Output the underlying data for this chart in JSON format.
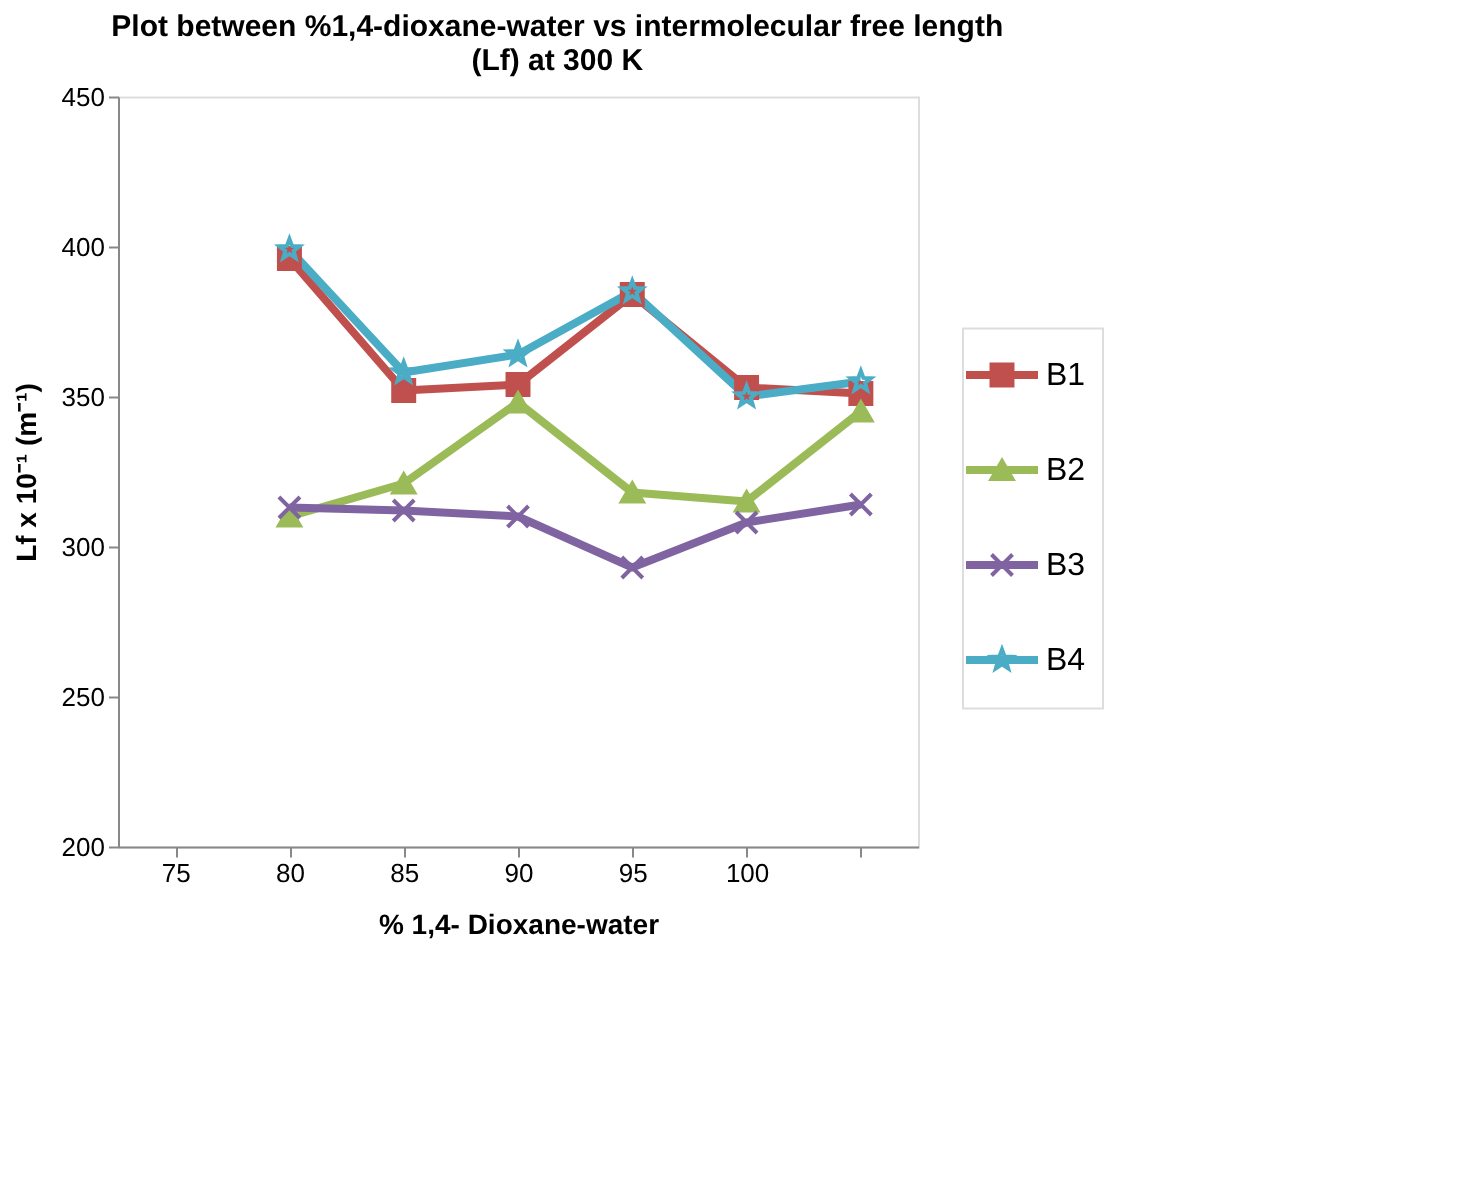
{
  "chart_data": {
    "type": "line",
    "title": "Plot between %1,4-dioxane-water vs intermolecular free length (Lf)  at 300 K",
    "xlabel": "%  1,4- Dioxane-water",
    "ylabel": "Lf x 10⁻¹ (m⁻¹)",
    "categories": [
      "75",
      "80",
      "85",
      "90",
      "95",
      "100",
      null
    ],
    "series": [
      {
        "name": "B1",
        "color": "#c0504d",
        "marker": "square",
        "values": [
          null,
          396,
          352,
          354,
          384,
          353,
          351
        ]
      },
      {
        "name": "B2",
        "color": "#9bbb59",
        "marker": "triangle",
        "values": [
          null,
          310,
          321,
          348,
          318,
          315,
          345
        ]
      },
      {
        "name": "B3",
        "color": "#8064a2",
        "marker": "cross",
        "values": [
          null,
          313,
          312,
          310,
          293,
          308,
          314
        ]
      },
      {
        "name": "B4",
        "color": "#4bacc6",
        "marker": "star",
        "values": [
          null,
          399,
          358,
          364,
          385,
          350,
          355
        ]
      }
    ],
    "ylim": [
      200,
      450
    ],
    "yticks": [
      200,
      250,
      300,
      350,
      400,
      450
    ],
    "grid": false,
    "legend": "right"
  }
}
